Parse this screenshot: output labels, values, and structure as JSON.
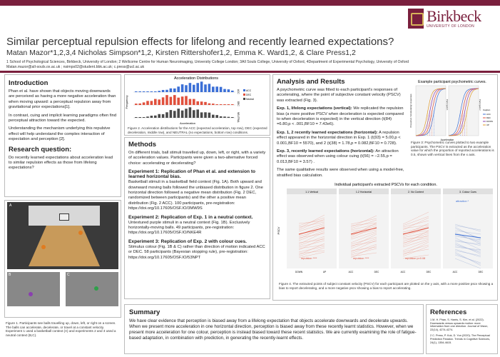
{
  "logo": {
    "name": "Birkbeck",
    "sub": "UNIVERSITY OF LONDON"
  },
  "title": "Similar perceptual repulsion effects for lifelong and recently learned expectations?",
  "authors": "Matan Mazor*1,2,3,4 Nicholas Simpson*1,2, Kirsten Rittershofer1,2, Emma K. Ward1,2, & Clare Press1,2",
  "affiliations": "1 School of Psychological Sciences, Birkbeck, University of London; 2 Wellcome Centre for Human Neuroimaging, University College London; 3All Souls College, University of Oxford, 4Department of Experimental Psychology, University of Oxford",
  "emails": "Matan.mazor@all-souls.ox.ac.uk ; nsimps02@student.bbk.ac.uk; c.press@ucl.ac.uk",
  "intro": {
    "heading": "Introduction",
    "p1": "Phan et al. have shown that objects moving downwards are perceived as having a more negative acceleration than when moving upward: a perceptual repulsion away from gravitational prior expectations[1].",
    "p2": "In contrast, cuing and implicit learning paradigms often find perceptual attraction toward the expected.",
    "p3": "Understanding the mechanism underlying this repulsive effect will help understand the complex interaction of expectation and perception [2].",
    "rq_heading": "Research question:",
    "rq": "Do recently learned expectations about acceleration lead to similar repulsion effects as those from lifelong expectations?"
  },
  "stim": {
    "labA": "A",
    "labB": "B",
    "labC": "C",
    "caption": "Figure 1. Participants see balls travelling up, down, left, or right on a screen. The balls can accelerate, decelerate, or travel at a constant velocity. Experiment 1 used a basketball context (A) and experiments 2 and 3 used a neutral context (B,C)."
  },
  "hist": {
    "title": "Acceleration Distributions",
    "ylabel": "Frequency",
    "xlabel": "Acceleration",
    "panels": [
      "ACC",
      "DEC",
      "NEUTRAL"
    ],
    "legend": [
      "ACC",
      "DEC",
      "Neutral"
    ],
    "caption": "Figure 2. Acceleration distributions for the ACC (expected acceleration, top row), DEC (expected deceleration, middle row), and NEUTRAL (no expectations, bottom row) conditions."
  },
  "methods": {
    "heading": "Methods",
    "p1": "On different trials, ball stimuli travelled up, down, left, or right, with a variety of acceleration values. Participants were given a two-alternative forced choice: accelerating or decelerating?",
    "e1h": "Experiment 1: Replication of Phan et al. and extension to learned horizontal bias.",
    "e1": "Basketball stimuli in a basketball field context (Fig. 1A). Both upward and downward moving balls followed the unbiased distribution in figure 2. One horizontal direction followed a negative mean distribution (Fig. 2 DEC, randomized between participants) and the other a positive mean distribution (Fig. 2 ACC). 100 participants, pre-registration: https://doi.org/10.17605/OSF.IO/3MW9S",
    "e2h": "Experiment 2: Replication of Exp. 1 in a neutral context.",
    "e2": "Untextured purple stimuli in a neutral context (Fig. 1B). Exclusively horizontally-moving balls. 49 participants, pre-registration: https://doi.org/10.17605/OSF.IO/NKE4R",
    "e3h": "Experiment 3: Replication of Exp. 2 with colour cues.",
    "e3": "Stimulus colour (Fig. 1B & C) rather than direction of motion indicated ACC or DEC. 58 participants (Bayesian stopping rule), pre-registration: https://doi.org/10.17605/OSF.IO/53NPT"
  },
  "analysis": {
    "heading": "Analysis and Results",
    "p1": "A psychometric curve was fitted to each participant's responses of accelerating, where the point of subjective constant velocity (PSCV) was extracted (Fig. 3).",
    "h1": "Exp. 1, lifelong expectations (vertical):",
    "t1": "We replicated the repulsion bias (a more positive PSCV when deceleration is expected compared to when deceleration is expected) in the vertical direction (t(84) =6.80,p < .001,BF10 = 7.43e6).",
    "h2": "Exp. 1, 2 recently learned expectations (horizontal):",
    "t2": "A repulsion effect appeared in the horizontal direction in Exp. 1 (t(93) = 5.00,p < 0.001,BF10 = 5570), and 2 (t(38) = 1.78,p = 0.082,BF10 = 0.728).",
    "h3": "Exp. 3, recently learned expectations (horizontal):",
    "t3": "An attraction effect was observed when using colour cuing (t(56) = −2.55,p = 0.013,BF10 = 3.57) .",
    "p2": "The same qualitative results were observed when using a model-free, stratified bias calculation.",
    "fig3title": "Example participant psychometric curves.",
    "fig3ylabel": "Proportion 'Accelerating' responses",
    "fig3xlabel": "Acceleration",
    "fig3panels": [
      "Participant 1",
      "Participant 2"
    ],
    "fig3legend_title": "Caption",
    "fig3legend": [
      "ACC",
      "DEC",
      "DOWN",
      "UP"
    ],
    "fig3caption": "Figure 3: Psychometric curves plotted to two example participants. The PSCV is extracted as the acceleration value for which the proportion of reported accelerations is 0.5, shown with vertical lines from the x axis.",
    "fig4title": "Individual participant's extracted PSCVs for each condition.",
    "fig4panels": [
      "1.1 Vertical",
      "1.2 Horizontal",
      "2. No Context",
      "3. Colour Cues"
    ],
    "fig4ylabel": "PSCV",
    "fig4ticks": [
      [
        "DOWN",
        "UP"
      ],
      [
        "ACC",
        "DEC"
      ],
      [
        "ACC",
        "DEC"
      ],
      [
        "ACC",
        "DEC"
      ]
    ],
    "fig4labels": [
      "repulsion ****",
      "repulsion ****",
      "repulsion p=0.08",
      "attraction *"
    ],
    "fig4caption": "Figure 4. The extracted points of subject constant velocity (PSCV) for each participant are plotted on the y axis, with a more positive pscv showing a bias to report decelerating, and a more negative pscv showing a bias to report accelerating."
  },
  "summary": {
    "heading": "Summary",
    "text": "We have clear evidence that perception is biased away from a lifelong expectation that objects accelerate downwards and decelerate upwards. When we present more acceleration in one horizontal direction, perception is biased away from these recently learnt statistics. However, when we present more acceleration for one colour, perception is instead biased toward these recent statistics. We are currently examining the role of fatigue-based adaptation, in combination with prediction, in generating the recently-learnt effects."
  },
  "refs": {
    "heading": "References",
    "r1": "1 M. H. Phan, S. Harris, S. Kim, et al. (2022). Downwards versus upwards motion: more information from one direction. Journal of Vision, 22(14), 4274-4274.",
    "r2": "2 C. Press, P. Kok, D. Yon (2020). The Perceptual Prediction Paradox. Trends in Cognitive Sciences, 24(1), 1354-4615."
  },
  "colors": {
    "accent": "#7a1f3d",
    "acc": "#3b6fd6",
    "dec": "#e0503c",
    "neutral": "#4a4a4a"
  }
}
